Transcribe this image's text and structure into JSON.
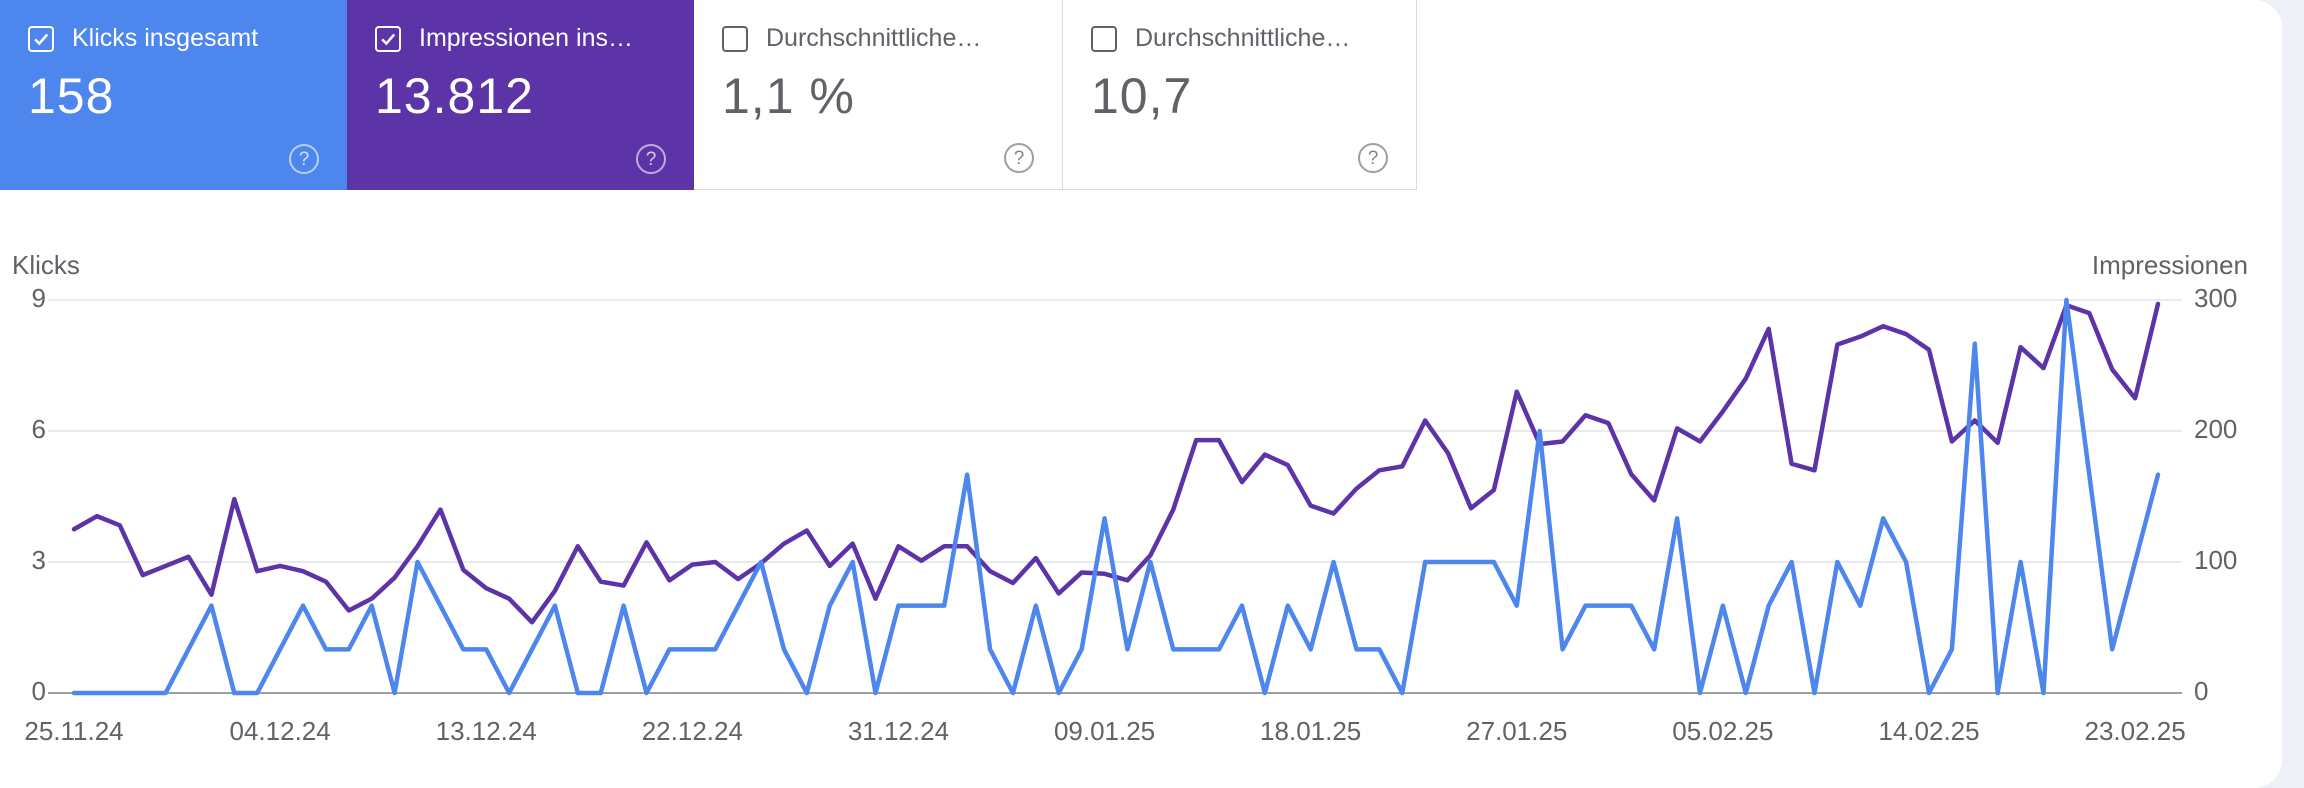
{
  "cards": [
    {
      "label": "Klicks insgesamt",
      "value": "158",
      "checked": true
    },
    {
      "label": "Impressionen ins…",
      "value": "13.812",
      "checked": true
    },
    {
      "label": "Durchschnittliche…",
      "value": "1,1 %",
      "checked": false
    },
    {
      "label": "Durchschnittliche…",
      "value": "10,7",
      "checked": false
    }
  ],
  "icons": {
    "help": "?"
  },
  "colors": {
    "clicks_blue": "#4d86ec",
    "impressions_purple": "#5c34a8",
    "axis_line": "#9aa0a6",
    "gridline": "#e8eaed",
    "text_gray": "#5f6368",
    "card_border": "#dadce0",
    "page_margin_bg": "#edf0f7"
  },
  "chart_data": {
    "type": "line",
    "title": "",
    "left_axis": {
      "label": "Klicks",
      "ticks": [
        0,
        3,
        6,
        9
      ],
      "max": 9
    },
    "right_axis": {
      "label": "Impressionen",
      "ticks": [
        0,
        100,
        200,
        300
      ],
      "max": 300
    },
    "x_tick_labels": [
      "25.11.24",
      "04.12.24",
      "13.12.24",
      "22.12.24",
      "31.12.24",
      "09.01.25",
      "18.01.25",
      "27.01.25",
      "05.02.25",
      "14.02.25",
      "23.02.25"
    ],
    "x_tick_days": [
      0,
      9,
      18,
      27,
      36,
      45,
      54,
      63,
      72,
      81,
      90
    ],
    "grid": true,
    "legend_position": "none",
    "dates": [
      "25.11.24",
      "26.11.24",
      "27.11.24",
      "28.11.24",
      "29.11.24",
      "30.11.24",
      "01.12.24",
      "02.12.24",
      "03.12.24",
      "04.12.24",
      "05.12.24",
      "06.12.24",
      "07.12.24",
      "08.12.24",
      "09.12.24",
      "10.12.24",
      "11.12.24",
      "12.12.24",
      "13.12.24",
      "14.12.24",
      "15.12.24",
      "16.12.24",
      "17.12.24",
      "18.12.24",
      "19.12.24",
      "20.12.24",
      "21.12.24",
      "22.12.24",
      "23.12.24",
      "24.12.24",
      "25.12.24",
      "26.12.24",
      "27.12.24",
      "28.12.24",
      "29.12.24",
      "30.12.24",
      "31.12.24",
      "01.01.25",
      "02.01.25",
      "03.01.25",
      "04.01.25",
      "05.01.25",
      "06.01.25",
      "07.01.25",
      "08.01.25",
      "09.01.25",
      "10.01.25",
      "11.01.25",
      "12.01.25",
      "13.01.25",
      "14.01.25",
      "15.01.25",
      "16.01.25",
      "17.01.25",
      "18.01.25",
      "19.01.25",
      "20.01.25",
      "21.01.25",
      "22.01.25",
      "23.01.25",
      "24.01.25",
      "25.01.25",
      "26.01.25",
      "27.01.25",
      "28.01.25",
      "29.01.25",
      "30.01.25",
      "31.01.25",
      "01.02.25",
      "02.02.25",
      "03.02.25",
      "04.02.25",
      "05.02.25",
      "06.02.25",
      "07.02.25",
      "08.02.25",
      "09.02.25",
      "10.02.25",
      "11.02.25",
      "12.02.25",
      "13.02.25",
      "14.02.25",
      "15.02.25",
      "16.02.25",
      "17.02.25",
      "18.02.25",
      "19.02.25",
      "20.02.25",
      "21.02.25",
      "22.02.25",
      "23.02.25",
      "24.02.25"
    ],
    "series": [
      {
        "name": "Klicks",
        "axis": "left",
        "color": "#4d86ec",
        "total": 158,
        "values": [
          0,
          0,
          0,
          0,
          0,
          1,
          2,
          0,
          0,
          1,
          2,
          1,
          1,
          2,
          0,
          3,
          2,
          1,
          1,
          0,
          1,
          2,
          0,
          0,
          2,
          0,
          1,
          1,
          1,
          2,
          3,
          1,
          0,
          2,
          3,
          0,
          2,
          2,
          2,
          5,
          1,
          0,
          2,
          0,
          1,
          4,
          1,
          3,
          1,
          1,
          1,
          2,
          0,
          2,
          1,
          3,
          1,
          1,
          0,
          3,
          3,
          3,
          3,
          2,
          6,
          1,
          2,
          2,
          2,
          1,
          4,
          0,
          2,
          0,
          2,
          3,
          0,
          3,
          2,
          4,
          3,
          0,
          1,
          8,
          0,
          3,
          0,
          9,
          5,
          1,
          3,
          5
        ]
      },
      {
        "name": "Impressionen",
        "axis": "right",
        "color": "#5c34a8",
        "total": 13812,
        "values": [
          125,
          135,
          128,
          90,
          97,
          104,
          75,
          148,
          93,
          97,
          93,
          85,
          63,
          72,
          88,
          112,
          140,
          94,
          80,
          72,
          54,
          78,
          112,
          85,
          82,
          115,
          86,
          98,
          100,
          87,
          99,
          114,
          124,
          97,
          114,
          72,
          112,
          101,
          112,
          112,
          93,
          84,
          103,
          76,
          92,
          91,
          86,
          105,
          140,
          193,
          193,
          161,
          182,
          174,
          143,
          137,
          156,
          170,
          173,
          208,
          183,
          141,
          155,
          230,
          190,
          192,
          212,
          206,
          167,
          147,
          202,
          192,
          215,
          240,
          278,
          175,
          170,
          266,
          272,
          280,
          274,
          262,
          192,
          208,
          191,
          264,
          248,
          296,
          290,
          247,
          225,
          297
        ]
      }
    ]
  }
}
